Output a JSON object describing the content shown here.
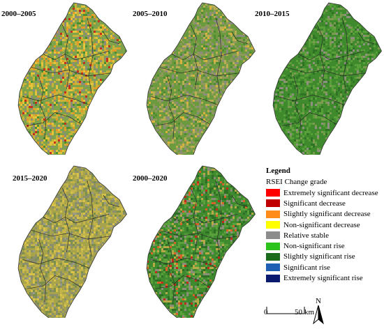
{
  "panels": [
    {
      "title": "2000–2005",
      "mix": [
        [
          0.42,
          "#7ea34a"
        ],
        [
          0.18,
          "#c7b23a"
        ],
        [
          0.12,
          "#e3c43a"
        ],
        [
          0.12,
          "#8c8c7a"
        ],
        [
          0.08,
          "#e39a26"
        ],
        [
          0.05,
          "#4c8f2e"
        ],
        [
          0.03,
          "#c4301e"
        ]
      ]
    },
    {
      "title": "2005–2010",
      "mix": [
        [
          0.45,
          "#6c9a3e"
        ],
        [
          0.18,
          "#8f9a5a"
        ],
        [
          0.14,
          "#b9ae52"
        ],
        [
          0.12,
          "#8c8c7e"
        ],
        [
          0.08,
          "#4d8c30"
        ],
        [
          0.03,
          "#d9b33c"
        ]
      ]
    },
    {
      "title": "2010–2015",
      "mix": [
        [
          0.55,
          "#3f8a2c"
        ],
        [
          0.2,
          "#5aa03a"
        ],
        [
          0.12,
          "#2f7325"
        ],
        [
          0.08,
          "#7c9a50"
        ],
        [
          0.05,
          "#8f8f82"
        ]
      ]
    },
    {
      "title": "2015–2020",
      "mix": [
        [
          0.34,
          "#a7a34a"
        ],
        [
          0.22,
          "#c3b34b"
        ],
        [
          0.18,
          "#8b8f6e"
        ],
        [
          0.14,
          "#7d8f4c"
        ],
        [
          0.08,
          "#d8c24a"
        ],
        [
          0.04,
          "#9a9a8a"
        ]
      ]
    },
    {
      "title": "2000–2020",
      "mix": [
        [
          0.44,
          "#3f8a2e"
        ],
        [
          0.2,
          "#5aa13c"
        ],
        [
          0.14,
          "#2d6f24"
        ],
        [
          0.1,
          "#8c8c7a"
        ],
        [
          0.07,
          "#b7a848"
        ],
        [
          0.03,
          "#d8622a"
        ],
        [
          0.02,
          "#c22a1a"
        ]
      ]
    }
  ],
  "legend": {
    "title": "Legend",
    "subtitle": "RSEI Change grade",
    "items": [
      {
        "label": "Extremely significant decrease",
        "color": "#ff0000"
      },
      {
        "label": "Significant decrease",
        "color": "#c00000"
      },
      {
        "label": "Slightly significant decrease",
        "color": "#ff8c1a"
      },
      {
        "label": "Non-significant decrease",
        "color": "#ffff00"
      },
      {
        "label": "Relative stable",
        "color": "#8c8c8c"
      },
      {
        "label": "Non-significant rise",
        "color": "#2cc31c"
      },
      {
        "label": "Slightly significant rise",
        "color": "#1a6b1a"
      },
      {
        "label": "Significant rise",
        "color": "#1f5fb4"
      },
      {
        "label": "Extremely significant rise",
        "color": "#0a1a6e"
      }
    ]
  },
  "scalebar": {
    "zero": "0",
    "end": "50",
    "unit": "km"
  },
  "north": {
    "label": "N",
    "icon": "north-arrow-icon"
  }
}
